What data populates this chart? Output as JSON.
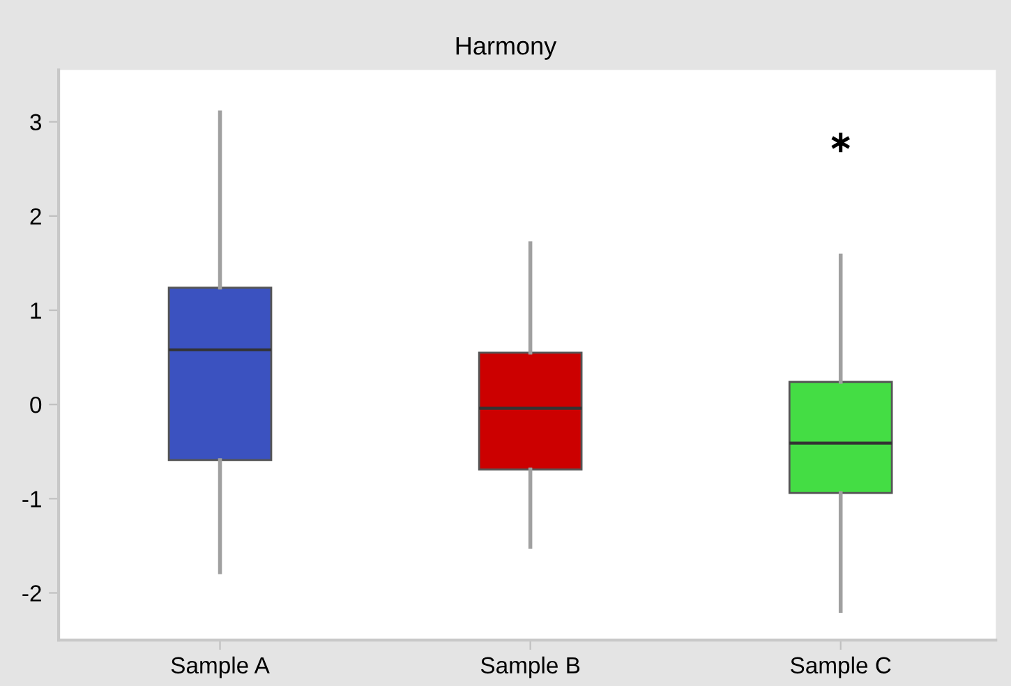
{
  "chart_data": {
    "type": "box",
    "title": "Harmony",
    "categories": [
      "Sample A",
      "Sample B",
      "Sample C"
    ],
    "colors": [
      "#3b52c0",
      "#cc0000",
      "#44dd44"
    ],
    "boxes": [
      {
        "low": -1.78,
        "q1": -0.59,
        "median": 0.58,
        "q3": 1.24,
        "high": 3.1
      },
      {
        "low": -1.51,
        "q1": -0.69,
        "median": -0.04,
        "q3": 0.55,
        "high": 1.71
      },
      {
        "low": -2.19,
        "q1": -0.94,
        "median": -0.41,
        "q3": 0.24,
        "high": 1.58,
        "outliers": [
          2.78
        ]
      }
    ],
    "ylim": [
      -2.5,
      3.55
    ],
    "yticks": [
      -2,
      -1,
      0,
      1,
      2,
      3
    ],
    "grid": false,
    "legend": false
  }
}
